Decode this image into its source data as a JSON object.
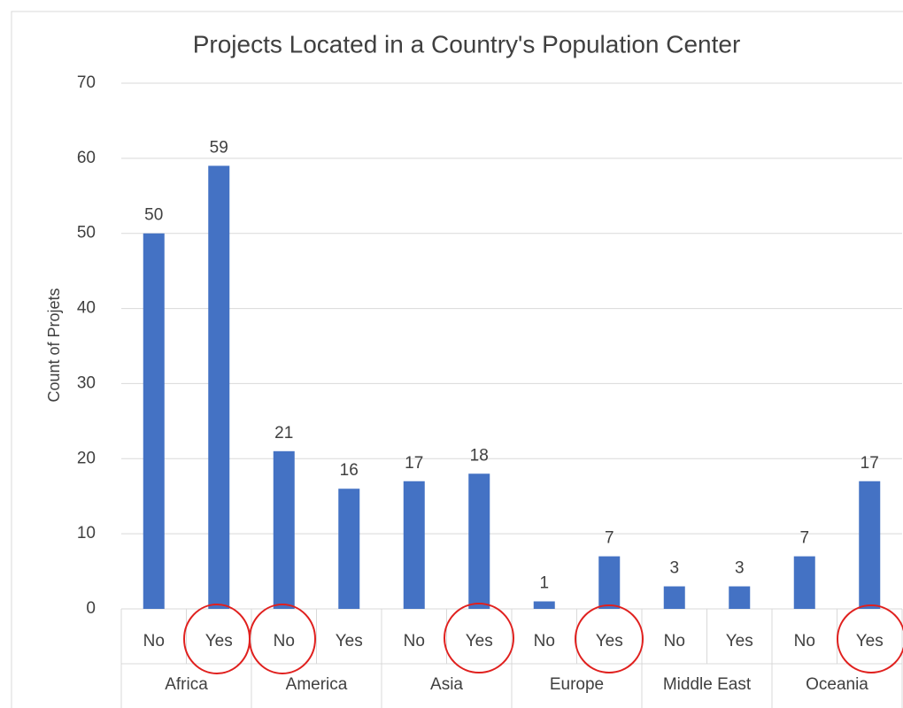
{
  "chart_data": {
    "type": "bar",
    "title": "Projects Located in a Country's Population Center",
    "y_label": "Count of Projets",
    "categories": [
      "No",
      "Yes",
      "No",
      "Yes",
      "No",
      "Yes",
      "No",
      "Yes",
      "No",
      "Yes",
      "No",
      "Yes"
    ],
    "groups": [
      "Africa",
      "America",
      "Asia",
      "Europe",
      "Middle East",
      "Oceania"
    ],
    "values": [
      50,
      59,
      21,
      16,
      17,
      18,
      1,
      7,
      3,
      3,
      7,
      17
    ],
    "color": "#4472c4",
    "ylim": [
      0,
      70
    ],
    "yticks": [
      0,
      10,
      20,
      30,
      40,
      50,
      60,
      70
    ],
    "grid": true
  }
}
